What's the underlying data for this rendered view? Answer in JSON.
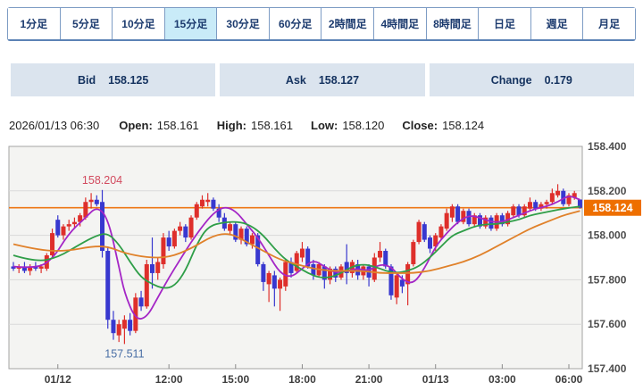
{
  "timeframe_tabs": {
    "items": [
      "1分足",
      "5分足",
      "10分足",
      "15分足",
      "30分足",
      "60分足",
      "2時間足",
      "4時間足",
      "8時間足",
      "日足",
      "週足",
      "月足"
    ],
    "selected_index": 3,
    "selected_label": "15分足"
  },
  "quote_bar": {
    "bid_label": "Bid",
    "bid_value": "158.125",
    "ask_label": "Ask",
    "ask_value": "158.127",
    "change_label": "Change",
    "change_value": "0.179"
  },
  "info_bar": {
    "datetime": "2026/01/13 06:30",
    "open_label": "Open:",
    "open_value": "158.161",
    "high_label": "High:",
    "high_value": "158.161",
    "low_label": "Low:",
    "low_value": "158.120",
    "close_label": "Close:",
    "close_value": "158.124"
  },
  "chart_data": {
    "type": "candlestick",
    "timeframe": "15分足",
    "ylim": [
      157.4,
      158.4
    ],
    "y_ticks": [
      "158.400",
      "158.200",
      "158.000",
      "157.800",
      "157.600",
      "157.400"
    ],
    "x_ticks": [
      {
        "index": 8,
        "label": "01/12"
      },
      {
        "index": 28,
        "label": "12:00"
      },
      {
        "index": 40,
        "label": "15:00"
      },
      {
        "index": 52,
        "label": "18:00"
      },
      {
        "index": 64,
        "label": "21:00"
      },
      {
        "index": 76,
        "label": "01/13"
      },
      {
        "index": 88,
        "label": "03:00"
      },
      {
        "index": 100,
        "label": "06:00"
      }
    ],
    "current_price": 158.124,
    "current_price_label": "158.124",
    "annotations": [
      {
        "text": "158.204",
        "index": 16,
        "price": 158.204,
        "placement": "above",
        "color": "#d24a5e"
      },
      {
        "text": "157.511",
        "index": 20,
        "price": 157.511,
        "placement": "below",
        "color": "#4a6fa5"
      }
    ],
    "candles": [
      [
        157.86,
        157.88,
        157.84,
        157.85
      ],
      [
        157.85,
        157.87,
        157.83,
        157.86
      ],
      [
        157.86,
        157.88,
        157.83,
        157.84
      ],
      [
        157.84,
        157.87,
        157.82,
        157.86
      ],
      [
        157.86,
        157.88,
        157.84,
        157.85
      ],
      [
        157.85,
        157.87,
        157.83,
        157.86
      ],
      [
        157.85,
        157.92,
        157.84,
        157.91
      ],
      [
        157.91,
        158.03,
        157.9,
        158.01
      ],
      [
        158.07,
        158.09,
        157.99,
        158.0
      ],
      [
        158.0,
        158.05,
        157.98,
        158.04
      ],
      [
        158.04,
        158.07,
        158.02,
        158.05
      ],
      [
        158.05,
        158.08,
        158.03,
        158.06
      ],
      [
        158.06,
        158.1,
        158.04,
        158.09
      ],
      [
        158.08,
        158.17,
        158.07,
        158.15
      ],
      [
        158.15,
        158.19,
        158.12,
        158.16
      ],
      [
        158.16,
        158.18,
        158.13,
        158.14
      ],
      [
        158.15,
        158.204,
        157.9,
        157.93
      ],
      [
        157.93,
        157.95,
        157.58,
        157.62
      ],
      [
        157.62,
        157.66,
        157.53,
        157.56
      ],
      [
        157.55,
        157.62,
        157.52,
        157.6
      ],
      [
        157.58,
        157.64,
        157.511,
        157.62
      ],
      [
        157.62,
        157.65,
        157.55,
        157.57
      ],
      [
        157.57,
        157.74,
        157.56,
        157.72
      ],
      [
        157.72,
        157.75,
        157.66,
        157.68
      ],
      [
        157.68,
        157.89,
        157.67,
        157.87
      ],
      [
        157.87,
        157.99,
        157.76,
        157.83
      ],
      [
        157.83,
        157.9,
        157.8,
        157.88
      ],
      [
        157.87,
        158.01,
        157.85,
        157.99
      ],
      [
        157.99,
        158.02,
        157.93,
        157.95
      ],
      [
        157.95,
        158.03,
        157.94,
        158.02
      ],
      [
        158.02,
        158.06,
        158.0,
        158.04
      ],
      [
        158.04,
        158.05,
        157.97,
        157.99
      ],
      [
        157.99,
        158.09,
        157.98,
        158.08
      ],
      [
        158.08,
        158.15,
        158.07,
        158.14
      ],
      [
        158.13,
        158.18,
        158.12,
        158.16
      ],
      [
        158.15,
        158.19,
        158.13,
        158.16
      ],
      [
        158.16,
        158.17,
        158.11,
        158.12
      ],
      [
        158.12,
        158.14,
        158.06,
        158.08
      ],
      [
        158.08,
        158.1,
        158.02,
        158.03
      ],
      [
        158.02,
        158.06,
        158.0,
        158.05
      ],
      [
        158.05,
        158.06,
        157.97,
        157.98
      ],
      [
        157.98,
        158.04,
        157.96,
        158.03
      ],
      [
        158.03,
        158.04,
        157.95,
        157.96
      ],
      [
        157.96,
        158.01,
        157.94,
        158.0
      ],
      [
        158.0,
        158.01,
        157.86,
        157.87
      ],
      [
        157.87,
        157.88,
        157.75,
        157.79
      ],
      [
        157.78,
        157.84,
        157.7,
        157.83
      ],
      [
        157.82,
        157.84,
        157.68,
        157.76
      ],
      [
        157.76,
        157.81,
        157.66,
        157.8
      ],
      [
        157.77,
        157.89,
        157.75,
        157.88
      ],
      [
        157.88,
        157.9,
        157.81,
        157.83
      ],
      [
        157.84,
        157.93,
        157.83,
        157.92
      ],
      [
        157.9,
        157.97,
        157.88,
        157.94
      ],
      [
        157.94,
        157.95,
        157.85,
        157.86
      ],
      [
        157.87,
        157.89,
        157.8,
        157.82
      ],
      [
        157.82,
        157.88,
        157.81,
        157.87
      ],
      [
        157.86,
        157.87,
        157.76,
        157.8
      ],
      [
        157.8,
        157.86,
        157.78,
        157.85
      ],
      [
        157.85,
        157.86,
        157.79,
        157.81
      ],
      [
        157.81,
        157.87,
        157.8,
        157.86
      ],
      [
        157.88,
        157.96,
        157.78,
        157.83
      ],
      [
        157.83,
        157.89,
        157.81,
        157.88
      ],
      [
        157.87,
        157.89,
        157.8,
        157.82
      ],
      [
        157.82,
        157.87,
        157.8,
        157.86
      ],
      [
        157.86,
        157.87,
        157.77,
        157.81
      ],
      [
        157.8,
        157.92,
        157.79,
        157.9
      ],
      [
        157.9,
        157.97,
        157.88,
        157.93
      ],
      [
        157.93,
        157.94,
        157.85,
        157.86
      ],
      [
        157.86,
        157.87,
        157.71,
        157.73
      ],
      [
        157.72,
        157.83,
        157.69,
        157.82
      ],
      [
        157.8,
        157.82,
        157.74,
        157.77
      ],
      [
        157.78,
        157.88,
        157.685,
        157.87
      ],
      [
        157.87,
        157.98,
        157.86,
        157.97
      ],
      [
        157.97,
        158.07,
        157.96,
        158.06
      ],
      [
        158.05,
        158.06,
        157.97,
        157.98
      ],
      [
        157.99,
        158.0,
        157.92,
        157.94
      ],
      [
        157.95,
        158.01,
        157.93,
        158.0
      ],
      [
        157.99,
        158.05,
        157.98,
        158.04
      ],
      [
        158.03,
        158.12,
        158.02,
        158.1
      ],
      [
        158.08,
        158.14,
        158.06,
        158.13
      ],
      [
        158.13,
        158.14,
        158.05,
        158.06
      ],
      [
        158.06,
        158.12,
        158.05,
        158.11
      ],
      [
        158.11,
        158.12,
        158.04,
        158.05
      ],
      [
        158.05,
        158.1,
        158.04,
        158.09
      ],
      [
        158.09,
        158.1,
        158.03,
        158.04
      ],
      [
        158.04,
        158.09,
        158.03,
        158.08
      ],
      [
        158.08,
        158.09,
        158.02,
        158.03
      ],
      [
        158.03,
        158.1,
        158.02,
        158.09
      ],
      [
        158.09,
        158.1,
        158.04,
        158.05
      ],
      [
        158.05,
        158.11,
        158.04,
        158.1
      ],
      [
        158.09,
        158.14,
        158.08,
        158.13
      ],
      [
        158.13,
        158.14,
        158.08,
        158.09
      ],
      [
        158.09,
        158.14,
        158.08,
        158.13
      ],
      [
        158.12,
        158.17,
        158.11,
        158.15
      ],
      [
        158.15,
        158.16,
        158.11,
        158.12
      ],
      [
        158.12,
        158.15,
        158.11,
        158.14
      ],
      [
        158.14,
        158.16,
        158.12,
        158.15
      ],
      [
        158.15,
        158.21,
        158.14,
        158.19
      ],
      [
        158.18,
        158.23,
        158.17,
        158.2
      ],
      [
        158.2,
        158.21,
        158.13,
        158.14
      ],
      [
        158.14,
        158.19,
        158.13,
        158.18
      ],
      [
        158.17,
        158.2,
        158.16,
        158.19
      ],
      [
        158.161,
        158.161,
        158.12,
        158.124
      ]
    ],
    "ma_lines": [
      {
        "name": "ma-fast-purple",
        "color": "#a426c6",
        "points": [
          [
            0,
            157.86
          ],
          [
            4,
            157.85
          ],
          [
            7,
            157.89
          ],
          [
            10,
            158.01
          ],
          [
            13,
            158.08
          ],
          [
            15,
            158.13
          ],
          [
            17,
            158.08
          ],
          [
            19,
            157.86
          ],
          [
            20,
            157.74
          ],
          [
            22,
            157.62
          ],
          [
            24,
            157.63
          ],
          [
            26,
            157.72
          ],
          [
            28,
            157.81
          ],
          [
            30,
            157.89
          ],
          [
            32,
            157.97
          ],
          [
            34,
            158.04
          ],
          [
            36,
            158.1
          ],
          [
            38,
            158.13
          ],
          [
            40,
            158.11
          ],
          [
            42,
            158.05
          ],
          [
            44,
            157.99
          ],
          [
            46,
            157.91
          ],
          [
            48,
            157.83
          ],
          [
            50,
            157.81
          ],
          [
            52,
            157.85
          ],
          [
            54,
            157.89
          ],
          [
            56,
            157.86
          ],
          [
            58,
            157.83
          ],
          [
            60,
            157.84
          ],
          [
            62,
            157.85
          ],
          [
            64,
            157.84
          ],
          [
            66,
            157.87
          ],
          [
            68,
            157.86
          ],
          [
            70,
            157.8
          ],
          [
            72,
            157.78
          ],
          [
            74,
            157.85
          ],
          [
            76,
            157.95
          ],
          [
            78,
            158.01
          ],
          [
            80,
            158.06
          ],
          [
            82,
            158.09
          ],
          [
            84,
            158.08
          ],
          [
            86,
            158.06
          ],
          [
            88,
            158.06
          ],
          [
            90,
            158.08
          ],
          [
            92,
            158.1
          ],
          [
            94,
            158.12
          ],
          [
            96,
            158.13
          ],
          [
            98,
            158.15
          ],
          [
            100,
            158.18
          ],
          [
            102,
            158.16
          ]
        ]
      },
      {
        "name": "ma-mid-green",
        "color": "#2f9e48",
        "points": [
          [
            0,
            157.91
          ],
          [
            4,
            157.88
          ],
          [
            8,
            157.9
          ],
          [
            12,
            157.96
          ],
          [
            15,
            158.0
          ],
          [
            17,
            158.01
          ],
          [
            19,
            157.96
          ],
          [
            21,
            157.88
          ],
          [
            23,
            157.81
          ],
          [
            25,
            157.78
          ],
          [
            27,
            157.76
          ],
          [
            29,
            157.77
          ],
          [
            31,
            157.84
          ],
          [
            33,
            157.96
          ],
          [
            35,
            158.04
          ],
          [
            38,
            158.06
          ],
          [
            41,
            158.06
          ],
          [
            43,
            158.04
          ],
          [
            45,
            158.0
          ],
          [
            47,
            157.94
          ],
          [
            49,
            157.89
          ],
          [
            51,
            157.86
          ],
          [
            53,
            157.83
          ],
          [
            55,
            157.81
          ],
          [
            57,
            157.81
          ],
          [
            59,
            157.83
          ],
          [
            61,
            157.86
          ],
          [
            63,
            157.87
          ],
          [
            65,
            157.86
          ],
          [
            67,
            157.84
          ],
          [
            69,
            157.83
          ],
          [
            71,
            157.84
          ],
          [
            73,
            157.86
          ],
          [
            75,
            157.9
          ],
          [
            77,
            157.95
          ],
          [
            79,
            158.0
          ],
          [
            81,
            158.02
          ],
          [
            83,
            158.04
          ],
          [
            85,
            158.05
          ],
          [
            87,
            158.05
          ],
          [
            89,
            158.06
          ],
          [
            91,
            158.07
          ],
          [
            93,
            158.09
          ],
          [
            95,
            158.1
          ],
          [
            97,
            158.11
          ],
          [
            99,
            158.12
          ],
          [
            102,
            158.13
          ]
        ]
      },
      {
        "name": "ma-slow-orange",
        "color": "#e0812a",
        "points": [
          [
            0,
            157.96
          ],
          [
            5,
            157.93
          ],
          [
            10,
            157.93
          ],
          [
            14,
            157.95
          ],
          [
            17,
            157.95
          ],
          [
            20,
            157.92
          ],
          [
            24,
            157.9
          ],
          [
            28,
            157.9
          ],
          [
            32,
            157.94
          ],
          [
            36,
            158.0
          ],
          [
            39,
            158.01
          ],
          [
            42,
            157.97
          ],
          [
            45,
            157.93
          ],
          [
            48,
            157.89
          ],
          [
            51,
            157.87
          ],
          [
            54,
            157.85
          ],
          [
            57,
            157.84
          ],
          [
            60,
            157.84
          ],
          [
            63,
            157.84
          ],
          [
            66,
            157.83
          ],
          [
            69,
            157.83
          ],
          [
            72,
            157.83
          ],
          [
            75,
            157.84
          ],
          [
            78,
            157.86
          ],
          [
            81,
            157.88
          ],
          [
            84,
            157.91
          ],
          [
            87,
            157.95
          ],
          [
            90,
            157.99
          ],
          [
            93,
            158.03
          ],
          [
            96,
            158.06
          ],
          [
            99,
            158.09
          ],
          [
            102,
            158.11
          ]
        ]
      }
    ],
    "colors": {
      "up_candle": "#de2f2b",
      "down_candle": "#3838cf",
      "grid": "#d9d9d9",
      "plot_bg": "#f4f4f2",
      "plot_border": "#a3a3a3",
      "price_line": "#ee7715",
      "badge_bg": "#ee6f00",
      "badge_text": "#ffffff",
      "axis_text": "#4d4d4d"
    }
  }
}
